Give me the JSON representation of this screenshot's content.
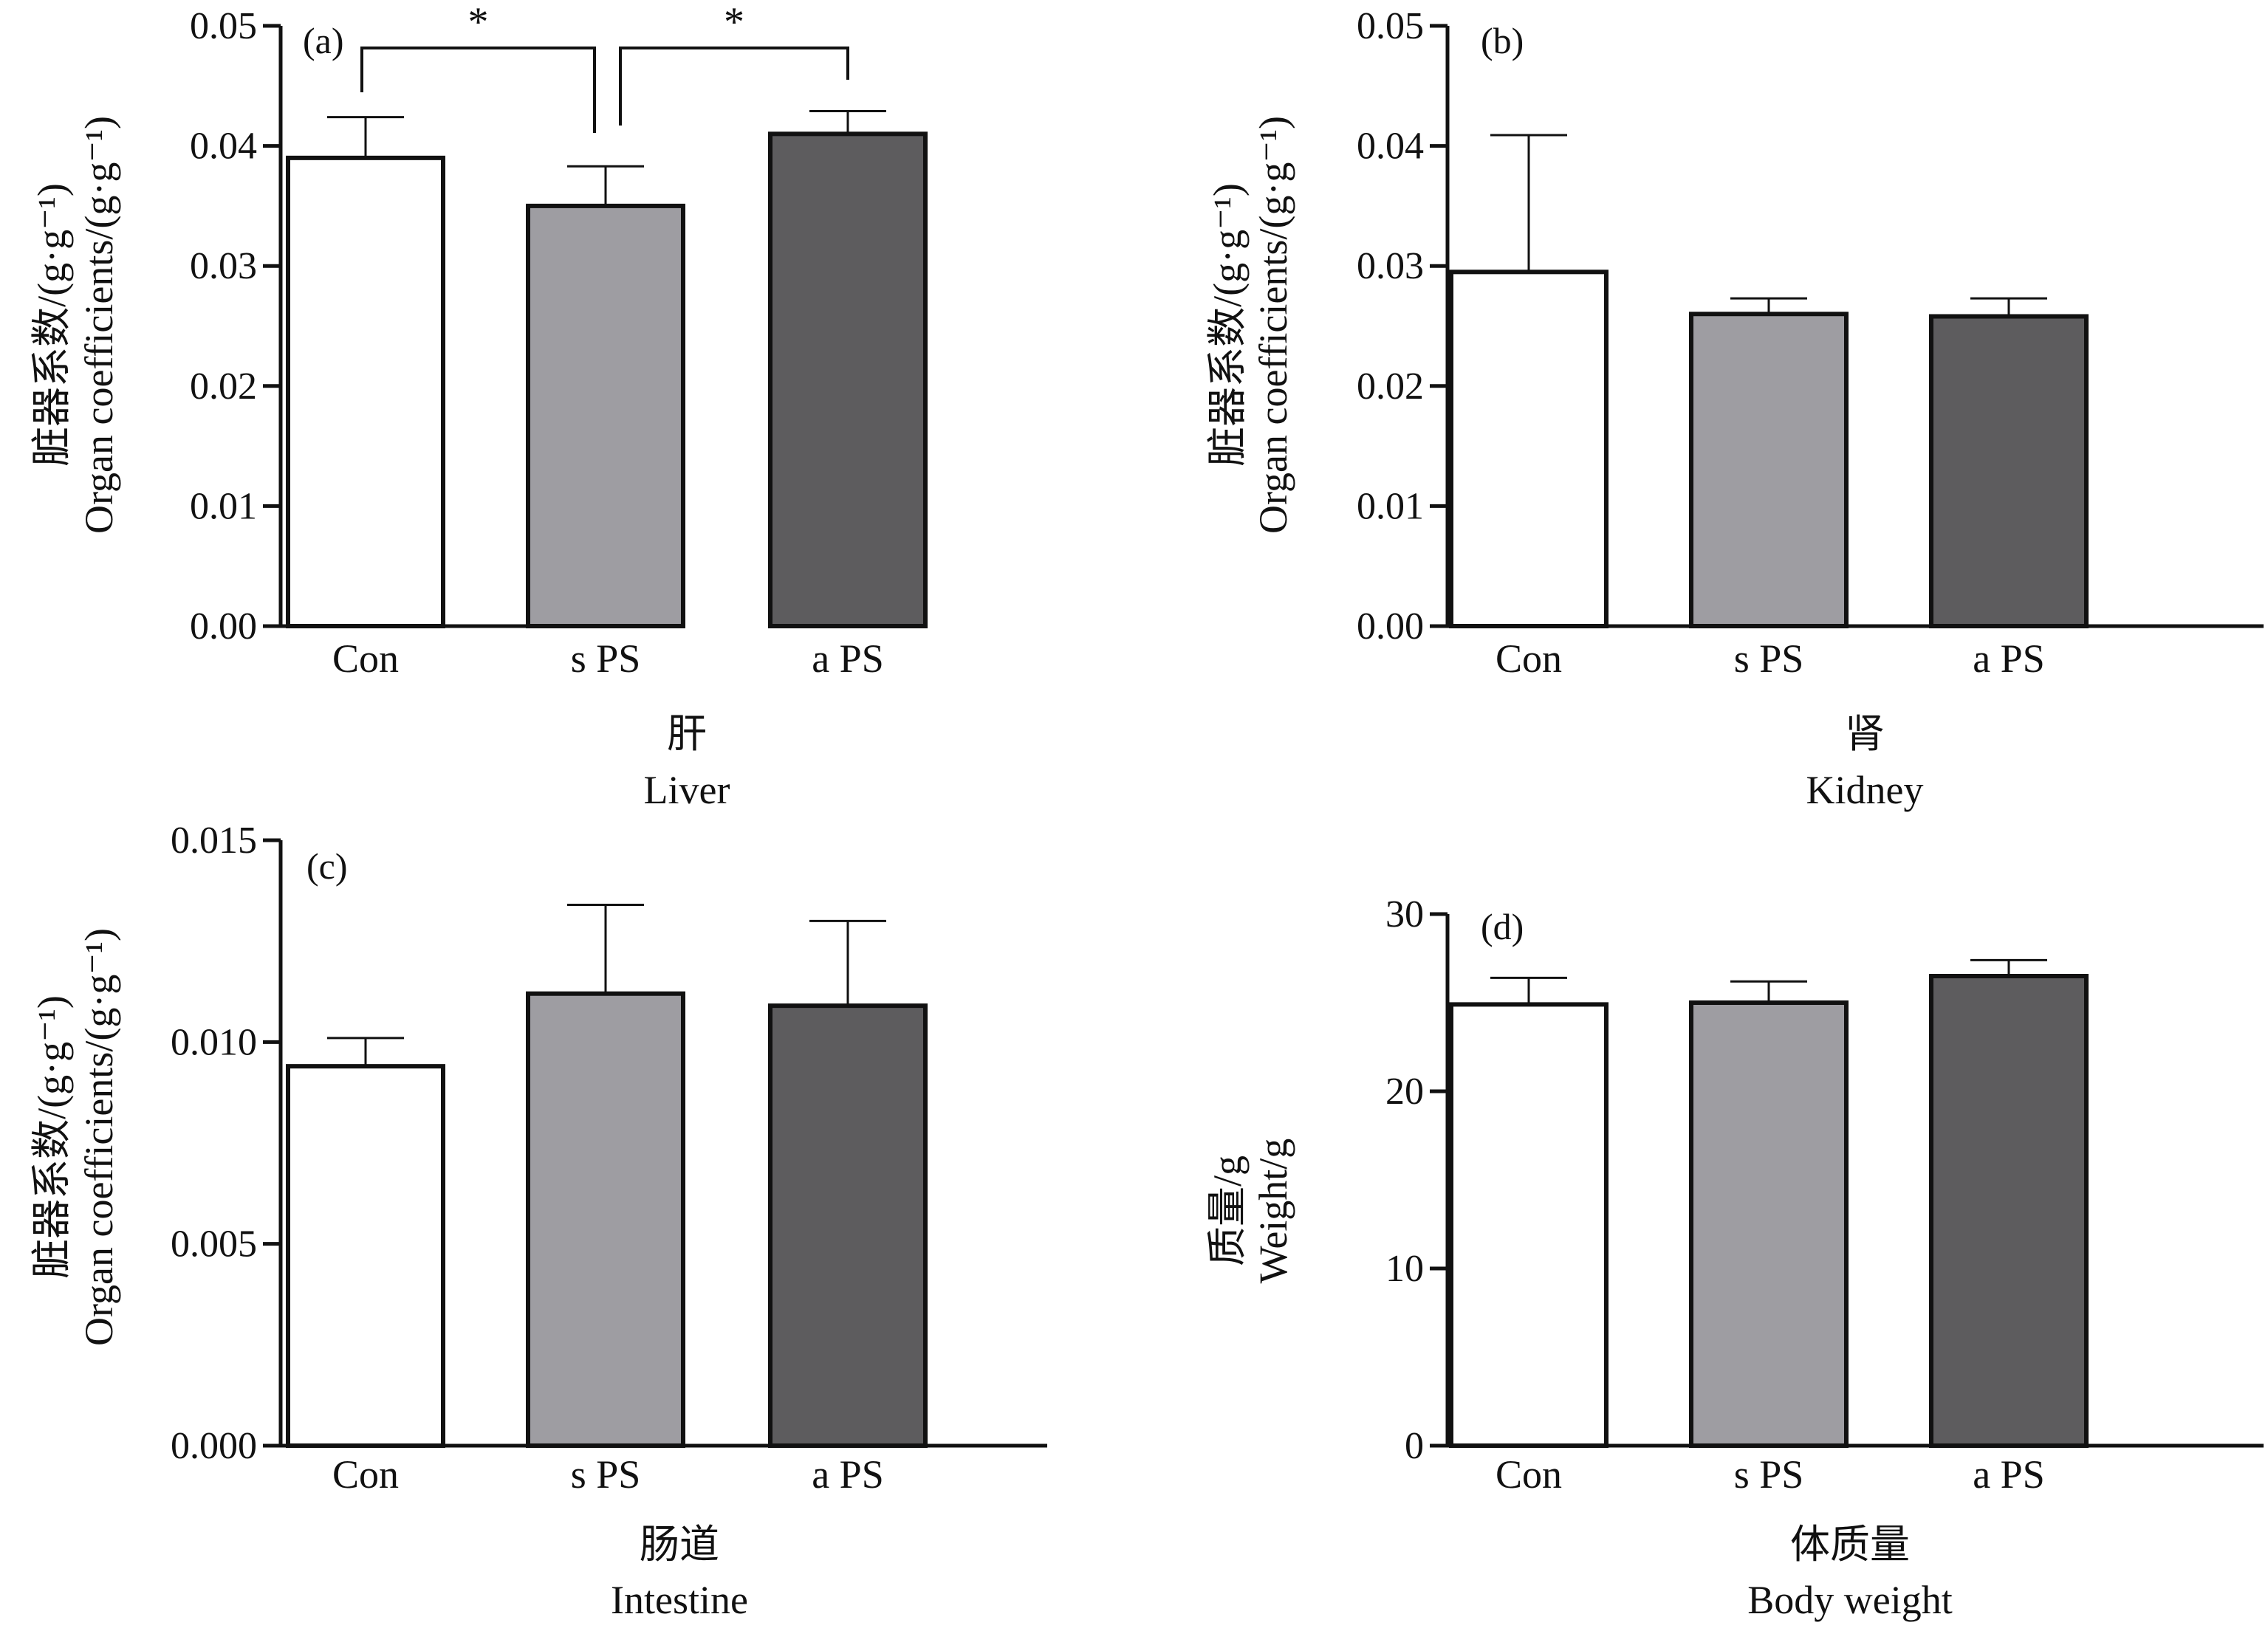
{
  "figure": {
    "group_categories": [
      "Con",
      "s PS",
      "a PS"
    ],
    "bar_colors": [
      "#ffffff",
      "#9e9da2",
      "#5d5c5e"
    ],
    "stroke_color": "#111111"
  },
  "chart_data": [
    {
      "type": "bar",
      "panel_label": "(a)",
      "categories": [
        "Con",
        "s PS",
        "a PS"
      ],
      "values": [
        0.039,
        0.035,
        0.041
      ],
      "error_upper": [
        0.0424,
        0.0383,
        0.0429
      ],
      "ylim": [
        0,
        0.05
      ],
      "yticks": [
        0,
        0.01,
        0.02,
        0.03,
        0.04,
        0.05
      ],
      "ytick_labels": [
        "0.00",
        "0.01",
        "0.02",
        "0.03",
        "0.04",
        "0.05"
      ],
      "ylabel_cn": "脏器系数/(g·g⁻¹)",
      "ylabel_en": "Organ coefficients/(g·g⁻¹)",
      "xlabel_cn": "肝",
      "xlabel_en": "Liver",
      "significance": [
        {
          "from": 0,
          "to": 1,
          "label": "*"
        },
        {
          "from": 1,
          "to": 2,
          "label": "*"
        }
      ]
    },
    {
      "type": "bar",
      "panel_label": "(b)",
      "categories": [
        "Con",
        "s PS",
        "a PS"
      ],
      "values": [
        0.0295,
        0.026,
        0.0258
      ],
      "error_upper": [
        0.0409,
        0.0273,
        0.0273
      ],
      "ylim": [
        0,
        0.05
      ],
      "yticks": [
        0,
        0.01,
        0.02,
        0.03,
        0.04,
        0.05
      ],
      "ytick_labels": [
        "0.00",
        "0.01",
        "0.02",
        "0.03",
        "0.04",
        "0.05"
      ],
      "ylabel_cn": "脏器系数/(g·g⁻¹)",
      "ylabel_en": "Organ coefficients/(g·g⁻¹)",
      "xlabel_cn": "肾",
      "xlabel_en": "Kidney",
      "significance": []
    },
    {
      "type": "bar",
      "panel_label": "(c)",
      "categories": [
        "Con",
        "s PS",
        "a PS"
      ],
      "values": [
        0.0094,
        0.0112,
        0.0109
      ],
      "error_upper": [
        0.0101,
        0.0134,
        0.013
      ],
      "ylim": [
        0,
        0.015
      ],
      "yticks": [
        0,
        0.005,
        0.01,
        0.015
      ],
      "ytick_labels": [
        "0.000",
        "0.005",
        "0.010",
        "0.015"
      ],
      "ylabel_cn": "脏器系数/(g·g⁻¹)",
      "ylabel_en": "Organ coefficients/(g·g⁻¹)",
      "xlabel_cn": "肠道",
      "xlabel_en": "Intestine",
      "significance": []
    },
    {
      "type": "bar",
      "panel_label": "(d)",
      "categories": [
        "Con",
        "s PS",
        "a PS"
      ],
      "values": [
        24.9,
        25.0,
        26.5
      ],
      "error_upper": [
        26.4,
        26.2,
        27.4
      ],
      "ylim": [
        0,
        30
      ],
      "yticks": [
        0,
        10,
        20,
        30
      ],
      "ytick_labels": [
        "0",
        "10",
        "20",
        "30"
      ],
      "ylabel_cn": "质量/g",
      "ylabel_en": "Weight/g",
      "xlabel_cn": "体质量",
      "xlabel_en": "Body weight",
      "significance": []
    }
  ]
}
